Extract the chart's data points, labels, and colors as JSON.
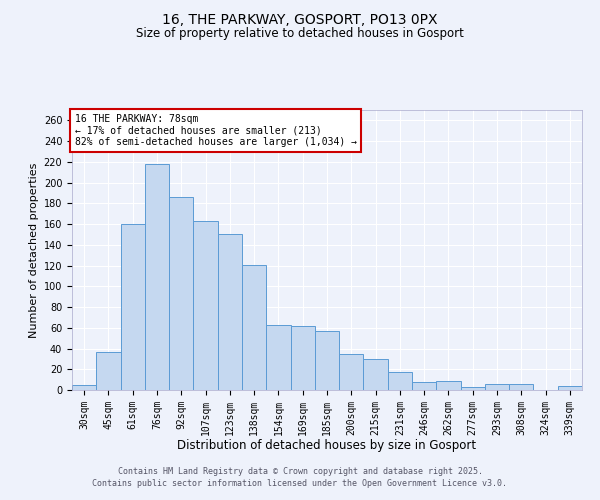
{
  "title": "16, THE PARKWAY, GOSPORT, PO13 0PX",
  "subtitle": "Size of property relative to detached houses in Gosport",
  "xlabel": "Distribution of detached houses by size in Gosport",
  "ylabel": "Number of detached properties",
  "categories": [
    "30sqm",
    "45sqm",
    "61sqm",
    "76sqm",
    "92sqm",
    "107sqm",
    "123sqm",
    "138sqm",
    "154sqm",
    "169sqm",
    "185sqm",
    "200sqm",
    "215sqm",
    "231sqm",
    "246sqm",
    "262sqm",
    "277sqm",
    "293sqm",
    "308sqm",
    "324sqm",
    "339sqm"
  ],
  "values": [
    5,
    37,
    160,
    218,
    186,
    163,
    150,
    121,
    63,
    62,
    57,
    35,
    30,
    17,
    8,
    9,
    3,
    6,
    6,
    0,
    4
  ],
  "bar_color": "#c5d8f0",
  "bar_edge_color": "#5b9bd5",
  "annotation_title": "16 THE PARKWAY: 78sqm",
  "annotation_line1": "← 17% of detached houses are smaller (213)",
  "annotation_line2": "82% of semi-detached houses are larger (1,034) →",
  "annotation_box_color": "#ffffff",
  "annotation_box_edge": "#cc0000",
  "ylim": [
    0,
    270
  ],
  "yticks": [
    0,
    20,
    40,
    60,
    80,
    100,
    120,
    140,
    160,
    180,
    200,
    220,
    240,
    260
  ],
  "bg_color": "#eef2fb",
  "grid_color": "#ffffff",
  "footer_line1": "Contains HM Land Registry data © Crown copyright and database right 2025.",
  "footer_line2": "Contains public sector information licensed under the Open Government Licence v3.0.",
  "title_fontsize": 10,
  "subtitle_fontsize": 8.5,
  "xlabel_fontsize": 8.5,
  "ylabel_fontsize": 8,
  "tick_fontsize": 7,
  "annotation_fontsize": 7,
  "footer_fontsize": 6
}
